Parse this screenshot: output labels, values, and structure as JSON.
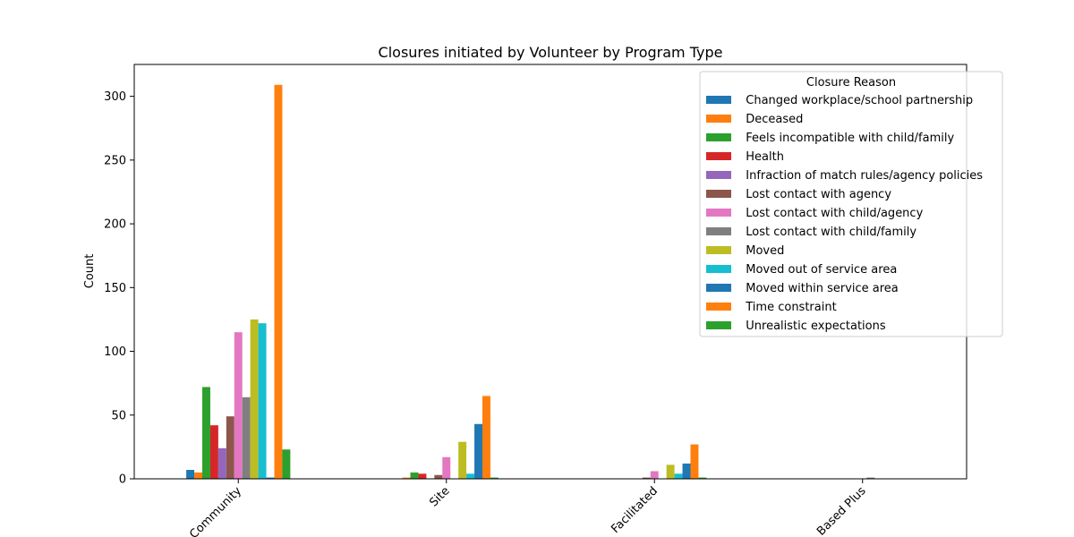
{
  "chart_data": {
    "type": "bar",
    "title": "Closures initiated by Volunteer by Program Type",
    "xlabel": "",
    "ylabel": "Count",
    "ylim": [
      0,
      325
    ],
    "yticks": [
      0,
      50,
      100,
      150,
      200,
      250,
      300
    ],
    "categories": [
      "Community",
      "Site",
      "Facilitated",
      "Based Plus"
    ],
    "category_labels": [
      "Community",
      "Site",
      "Facilitated",
      "Based Plus"
    ],
    "legend": {
      "title": "Closure Reason",
      "placement": "top-right",
      "grid": false
    },
    "series": [
      {
        "name": "  Changed workplace/school partnership",
        "color": "#1f77b4",
        "values": [
          7,
          0,
          0,
          0
        ]
      },
      {
        "name": "  Deceased",
        "color": "#ff7f0e",
        "values": [
          5,
          1,
          0,
          0
        ]
      },
      {
        "name": "  Feels incompatible with child/family",
        "color": "#2ca02c",
        "values": [
          72,
          5,
          0,
          0
        ]
      },
      {
        "name": "  Health",
        "color": "#d62728",
        "values": [
          42,
          4,
          0,
          0
        ]
      },
      {
        "name": "  Infraction of match rules/agency policies",
        "color": "#9467bd",
        "values": [
          24,
          0,
          0,
          0
        ]
      },
      {
        "name": "  Lost contact with agency",
        "color": "#8c564b",
        "values": [
          49,
          3,
          1,
          0
        ]
      },
      {
        "name": "  Lost contact with child/agency",
        "color": "#e377c2",
        "values": [
          115,
          17,
          6,
          0
        ]
      },
      {
        "name": "  Lost contact with child/family",
        "color": "#7f7f7f",
        "values": [
          64,
          0,
          0,
          1
        ]
      },
      {
        "name": "  Moved",
        "color": "#bcbd22",
        "values": [
          125,
          29,
          11,
          0
        ]
      },
      {
        "name": "  Moved out of service area",
        "color": "#17becf",
        "values": [
          122,
          4,
          4,
          0
        ]
      },
      {
        "name": "  Moved within service area",
        "color": "#1f77b4",
        "values": [
          1,
          43,
          12,
          0
        ]
      },
      {
        "name": "  Time constraint",
        "color": "#ff7f0e",
        "values": [
          309,
          65,
          27,
          0
        ]
      },
      {
        "name": "  Unrealistic expectations",
        "color": "#2ca02c",
        "values": [
          23,
          1,
          1,
          0
        ]
      }
    ]
  }
}
